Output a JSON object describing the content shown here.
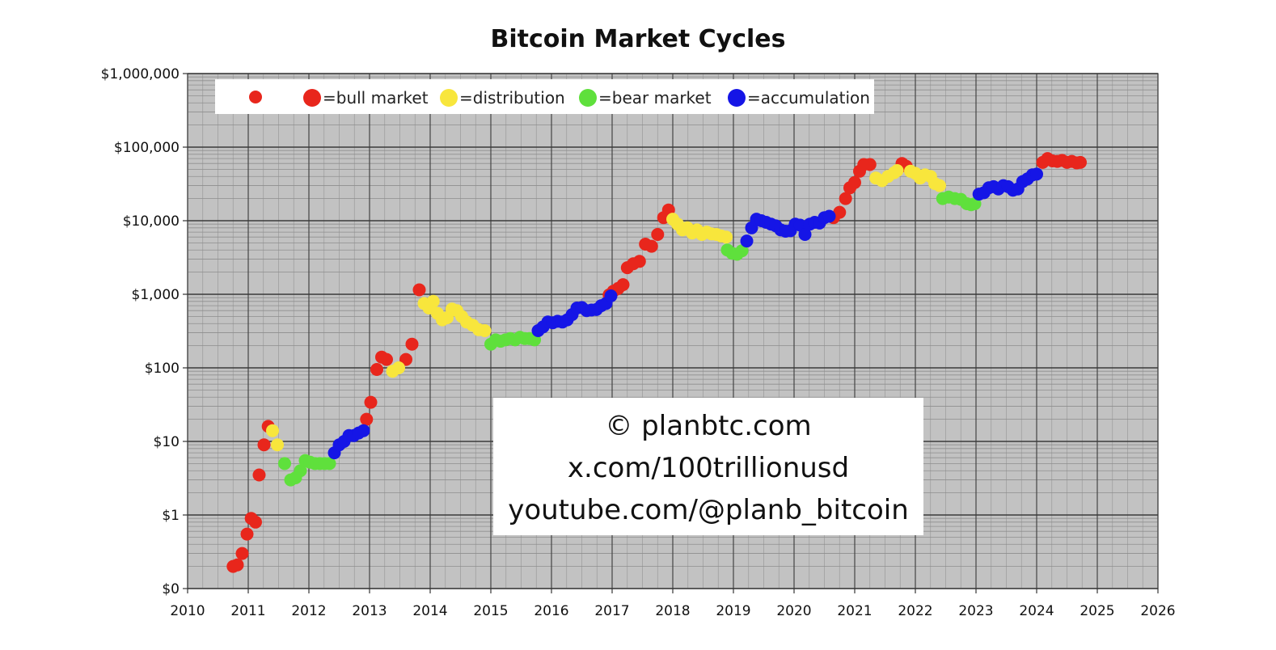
{
  "chart_data": {
    "type": "scatter",
    "title": "Bitcoin Market Cycles",
    "xlabel": "",
    "ylabel": "",
    "xlim": [
      2010,
      2026
    ],
    "ylim": [
      0.1,
      1000000
    ],
    "y_scale": "log",
    "grid": true,
    "x_ticks": [
      "2010",
      "2011",
      "2012",
      "2013",
      "2014",
      "2015",
      "2016",
      "2017",
      "2018",
      "2019",
      "2020",
      "2021",
      "2022",
      "2023",
      "2024",
      "2025",
      "2026"
    ],
    "y_ticks": [
      {
        "value": 0.1,
        "label": "$0"
      },
      {
        "value": 1,
        "label": "$1"
      },
      {
        "value": 10,
        "label": "$10"
      },
      {
        "value": 100,
        "label": "$100"
      },
      {
        "value": 1000,
        "label": "$1,000"
      },
      {
        "value": 10000,
        "label": "$10,000"
      },
      {
        "value": 100000,
        "label": "$100,000"
      },
      {
        "value": 1000000,
        "label": "$1,000,000"
      }
    ],
    "legend": {
      "position": "top-left",
      "entries": [
        {
          "label": "",
          "color": "#e8261c"
        },
        {
          "label": "=bull market",
          "color": "#e8261c"
        },
        {
          "label": "=distribution",
          "color": "#f8e63c"
        },
        {
          "label": "=bear market",
          "color": "#5fe03c"
        },
        {
          "label": "=accumulation",
          "color": "#1515e6"
        }
      ]
    },
    "series": [
      {
        "phase": "bull",
        "color": "#e8261c",
        "points": [
          [
            2010.75,
            0.2
          ],
          [
            2010.82,
            0.21
          ],
          [
            2010.9,
            0.3
          ],
          [
            2010.98,
            0.55
          ],
          [
            2011.05,
            0.9
          ],
          [
            2011.12,
            0.8
          ],
          [
            2011.18,
            3.5
          ],
          [
            2011.26,
            9
          ],
          [
            2011.33,
            16
          ],
          [
            2012.95,
            20
          ],
          [
            2013.02,
            34
          ],
          [
            2013.12,
            95
          ],
          [
            2013.2,
            140
          ],
          [
            2013.28,
            130
          ],
          [
            2013.6,
            130
          ],
          [
            2013.7,
            210
          ],
          [
            2013.82,
            1150
          ],
          [
            2016.95,
            980
          ],
          [
            2017.02,
            1100
          ],
          [
            2017.1,
            1200
          ],
          [
            2017.18,
            1350
          ],
          [
            2017.25,
            2300
          ],
          [
            2017.35,
            2600
          ],
          [
            2017.45,
            2800
          ],
          [
            2017.55,
            4800
          ],
          [
            2017.65,
            4500
          ],
          [
            2017.75,
            6500
          ],
          [
            2017.85,
            11000
          ],
          [
            2017.93,
            14000
          ],
          [
            2020.65,
            11000
          ],
          [
            2020.75,
            13000
          ],
          [
            2020.85,
            20000
          ],
          [
            2020.92,
            28000
          ],
          [
            2021.0,
            33000
          ],
          [
            2021.08,
            47000
          ],
          [
            2021.15,
            58000
          ],
          [
            2021.25,
            58000
          ],
          [
            2021.78,
            60000
          ],
          [
            2021.85,
            55000
          ],
          [
            2024.1,
            62000
          ],
          [
            2024.18,
            70000
          ],
          [
            2024.26,
            65000
          ],
          [
            2024.34,
            64000
          ],
          [
            2024.42,
            66000
          ],
          [
            2024.5,
            62000
          ],
          [
            2024.58,
            64000
          ],
          [
            2024.66,
            61000
          ],
          [
            2024.72,
            62000
          ]
        ]
      },
      {
        "phase": "distribution",
        "color": "#f8e63c",
        "points": [
          [
            2011.4,
            14
          ],
          [
            2011.48,
            9
          ],
          [
            2013.38,
            90
          ],
          [
            2013.48,
            100
          ],
          [
            2013.9,
            750
          ],
          [
            2013.98,
            650
          ],
          [
            2014.05,
            800
          ],
          [
            2014.12,
            550
          ],
          [
            2014.2,
            450
          ],
          [
            2014.28,
            480
          ],
          [
            2014.36,
            630
          ],
          [
            2014.44,
            600
          ],
          [
            2014.52,
            500
          ],
          [
            2014.6,
            420
          ],
          [
            2014.7,
            380
          ],
          [
            2014.8,
            330
          ],
          [
            2014.9,
            320
          ],
          [
            2018.0,
            10500
          ],
          [
            2018.08,
            9000
          ],
          [
            2018.16,
            7500
          ],
          [
            2018.24,
            8000
          ],
          [
            2018.32,
            6800
          ],
          [
            2018.4,
            7500
          ],
          [
            2018.48,
            6500
          ],
          [
            2018.56,
            7000
          ],
          [
            2018.64,
            6600
          ],
          [
            2018.72,
            6500
          ],
          [
            2018.8,
            6200
          ],
          [
            2018.88,
            6000
          ],
          [
            2021.35,
            38000
          ],
          [
            2021.45,
            35000
          ],
          [
            2021.55,
            40000
          ],
          [
            2021.65,
            45000
          ],
          [
            2021.7,
            48000
          ],
          [
            2021.92,
            47000
          ],
          [
            2022.0,
            44000
          ],
          [
            2022.08,
            38000
          ],
          [
            2022.16,
            42000
          ],
          [
            2022.25,
            40000
          ],
          [
            2022.32,
            32000
          ],
          [
            2022.4,
            30000
          ]
        ]
      },
      {
        "phase": "bear",
        "color": "#5fe03c",
        "points": [
          [
            2011.6,
            5
          ],
          [
            2011.7,
            3
          ],
          [
            2011.78,
            3.2
          ],
          [
            2011.86,
            4
          ],
          [
            2011.94,
            5.5
          ],
          [
            2012.02,
            5.2
          ],
          [
            2012.1,
            5
          ],
          [
            2012.18,
            5
          ],
          [
            2012.26,
            5
          ],
          [
            2012.34,
            5
          ],
          [
            2015.0,
            210
          ],
          [
            2015.08,
            240
          ],
          [
            2015.16,
            230
          ],
          [
            2015.24,
            240
          ],
          [
            2015.32,
            250
          ],
          [
            2015.4,
            240
          ],
          [
            2015.48,
            260
          ],
          [
            2015.56,
            250
          ],
          [
            2015.64,
            250
          ],
          [
            2015.72,
            240
          ],
          [
            2018.9,
            4000
          ],
          [
            2018.98,
            3600
          ],
          [
            2019.06,
            3500
          ],
          [
            2019.14,
            3900
          ],
          [
            2022.45,
            20000
          ],
          [
            2022.55,
            21000
          ],
          [
            2022.65,
            20000
          ],
          [
            2022.75,
            19500
          ],
          [
            2022.85,
            17000
          ],
          [
            2022.92,
            16500
          ],
          [
            2022.98,
            17000
          ]
        ]
      },
      {
        "phase": "accumulation",
        "color": "#1515e6",
        "points": [
          [
            2012.42,
            7
          ],
          [
            2012.5,
            9
          ],
          [
            2012.58,
            10
          ],
          [
            2012.66,
            12
          ],
          [
            2012.74,
            12
          ],
          [
            2012.82,
            13
          ],
          [
            2012.9,
            14
          ],
          [
            2015.78,
            320
          ],
          [
            2015.86,
            360
          ],
          [
            2015.94,
            420
          ],
          [
            2016.02,
            410
          ],
          [
            2016.1,
            430
          ],
          [
            2016.18,
            420
          ],
          [
            2016.26,
            450
          ],
          [
            2016.34,
            530
          ],
          [
            2016.42,
            650
          ],
          [
            2016.5,
            660
          ],
          [
            2016.58,
            600
          ],
          [
            2016.66,
            610
          ],
          [
            2016.74,
            620
          ],
          [
            2016.82,
            700
          ],
          [
            2016.9,
            750
          ],
          [
            2016.98,
            950
          ],
          [
            2019.22,
            5300
          ],
          [
            2019.3,
            8000
          ],
          [
            2019.38,
            10500
          ],
          [
            2019.46,
            10000
          ],
          [
            2019.54,
            9500
          ],
          [
            2019.62,
            9000
          ],
          [
            2019.7,
            8500
          ],
          [
            2019.78,
            7500
          ],
          [
            2019.86,
            7200
          ],
          [
            2019.94,
            7300
          ],
          [
            2020.02,
            9000
          ],
          [
            2020.1,
            8700
          ],
          [
            2020.18,
            6500
          ],
          [
            2020.26,
            9000
          ],
          [
            2020.34,
            9500
          ],
          [
            2020.42,
            9300
          ],
          [
            2020.5,
            11000
          ],
          [
            2020.58,
            11500
          ],
          [
            2023.05,
            23000
          ],
          [
            2023.13,
            24000
          ],
          [
            2023.21,
            28000
          ],
          [
            2023.29,
            29000
          ],
          [
            2023.37,
            27000
          ],
          [
            2023.45,
            30000
          ],
          [
            2023.53,
            29000
          ],
          [
            2023.61,
            26000
          ],
          [
            2023.69,
            27000
          ],
          [
            2023.77,
            34000
          ],
          [
            2023.85,
            37000
          ],
          [
            2023.93,
            42000
          ],
          [
            2024.0,
            43000
          ]
        ]
      }
    ]
  },
  "watermark": {
    "line1": "© planbtc.com",
    "line2": "x.com/100trillionusd",
    "line3": "youtube.com/@planb_bitcoin"
  }
}
